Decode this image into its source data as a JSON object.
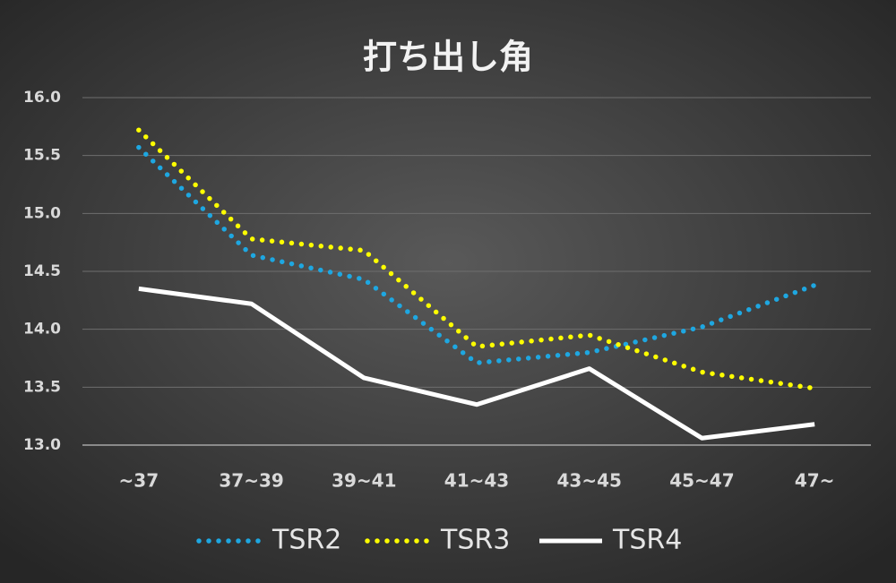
{
  "chart_data": {
    "type": "line",
    "title": "打ち出し角",
    "categories": [
      "~37",
      "37~39",
      "39~41",
      "41~43",
      "43~45",
      "45~47",
      "47~"
    ],
    "series": [
      {
        "name": "TSR2",
        "color": "#1ea7e1",
        "dash": "dotted",
        "values": [
          15.57,
          14.64,
          14.43,
          13.71,
          13.8,
          14.02,
          14.38
        ]
      },
      {
        "name": "TSR3",
        "color": "#ffff00",
        "dash": "dotted",
        "values": [
          15.72,
          14.78,
          14.68,
          13.85,
          13.95,
          13.63,
          13.49
        ]
      },
      {
        "name": "TSR4",
        "color": "#ffffff",
        "dash": "solid",
        "values": [
          14.35,
          14.22,
          13.58,
          13.35,
          13.66,
          13.06,
          13.18
        ]
      }
    ],
    "ylim": [
      13,
      16
    ],
    "yticks": [
      {
        "value": 13,
        "label": "13.0"
      },
      13.5,
      {
        "value": 14,
        "label": "14.0"
      },
      14.5,
      {
        "value": 15,
        "label": "15.0"
      },
      15.5,
      {
        "value": 16,
        "label": "16.0"
      }
    ],
    "grid": true,
    "legend": "bottom"
  }
}
